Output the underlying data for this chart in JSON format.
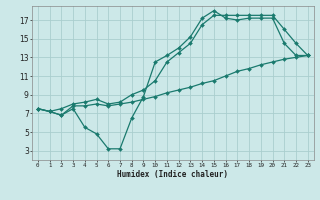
{
  "title": "",
  "xlabel": "Humidex (Indice chaleur)",
  "ylabel": "",
  "bg_color": "#cce8e8",
  "line_color": "#1a7a6e",
  "grid_color": "#aacece",
  "xlim": [
    -0.5,
    23.5
  ],
  "ylim": [
    2.0,
    18.5
  ],
  "xticks": [
    0,
    1,
    2,
    3,
    4,
    5,
    6,
    7,
    8,
    9,
    10,
    11,
    12,
    13,
    14,
    15,
    16,
    17,
    18,
    19,
    20,
    21,
    22,
    23
  ],
  "yticks": [
    3,
    5,
    7,
    9,
    11,
    13,
    15,
    17
  ],
  "line1_x": [
    0,
    1,
    2,
    3,
    4,
    5,
    6,
    7,
    8,
    9,
    10,
    11,
    12,
    13,
    14,
    15,
    16,
    17,
    18,
    19,
    20,
    21,
    22,
    23
  ],
  "line1_y": [
    7.5,
    7.2,
    6.8,
    7.5,
    5.5,
    4.8,
    3.2,
    3.2,
    6.5,
    8.8,
    12.5,
    13.2,
    14,
    15.2,
    17.2,
    18.0,
    17.2,
    17.0,
    17.2,
    17.2,
    17.2,
    14.5,
    13.2,
    13.2
  ],
  "line2_x": [
    0,
    1,
    2,
    3,
    4,
    5,
    6,
    7,
    8,
    9,
    10,
    11,
    12,
    13,
    14,
    15,
    16,
    17,
    18,
    19,
    20,
    21,
    22,
    23
  ],
  "line2_y": [
    7.5,
    7.2,
    6.8,
    7.8,
    7.8,
    8.0,
    7.8,
    8.0,
    8.2,
    8.5,
    8.8,
    9.2,
    9.5,
    9.8,
    10.2,
    10.5,
    11.0,
    11.5,
    11.8,
    12.2,
    12.5,
    12.8,
    13.0,
    13.2
  ],
  "line3_x": [
    0,
    1,
    2,
    3,
    4,
    5,
    6,
    7,
    8,
    9,
    10,
    11,
    12,
    13,
    14,
    15,
    16,
    17,
    18,
    19,
    20,
    21,
    22,
    23
  ],
  "line3_y": [
    7.5,
    7.2,
    7.5,
    8.0,
    8.2,
    8.5,
    8.0,
    8.2,
    9.0,
    9.5,
    10.5,
    12.5,
    13.5,
    14.5,
    16.5,
    17.5,
    17.5,
    17.5,
    17.5,
    17.5,
    17.5,
    16.0,
    14.5,
    13.2
  ],
  "xlabel_fontsize": 5.5,
  "tick_fontsize_x": 4.2,
  "tick_fontsize_y": 5.5
}
